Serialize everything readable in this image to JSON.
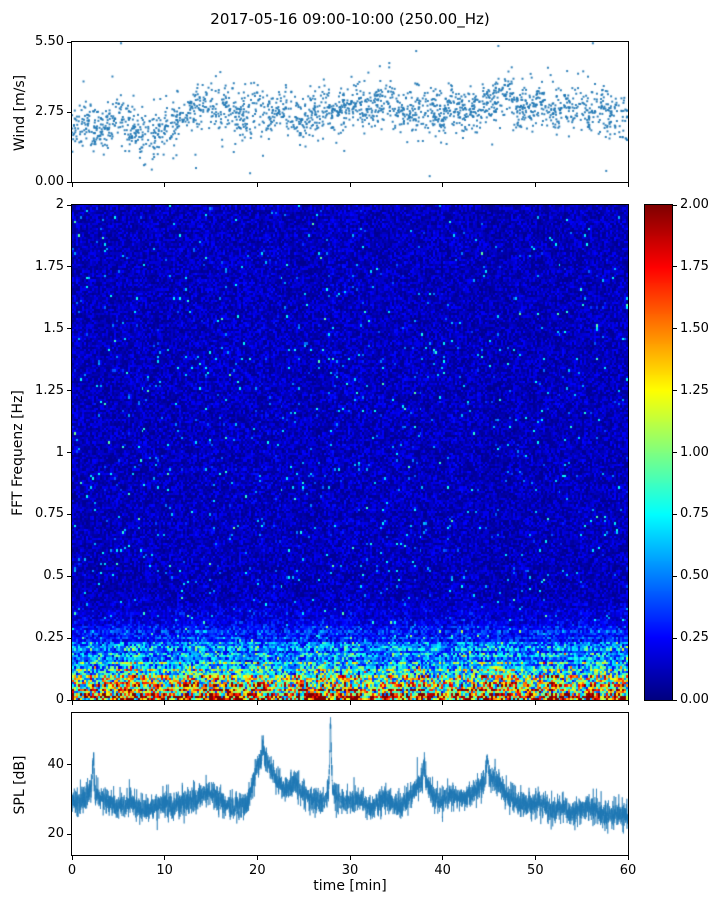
{
  "title": "2017-05-16 09:00-10:00 (250.00_Hz)",
  "colors": {
    "series_blue": "#1f77b4",
    "axis": "#000000",
    "background": "#ffffff"
  },
  "chart_data": [
    {
      "type": "scatter",
      "ylabel": "Wind [m/s]",
      "ylim": [
        0,
        5.5
      ],
      "ytick_labels": [
        "0.00",
        "2.75",
        "5.50"
      ],
      "ytick_values": [
        0,
        2.75,
        5.5
      ],
      "xlim": [
        0,
        60
      ],
      "marker_color": "#1f77b4",
      "n_points": 2000,
      "scatter_spread": 0.45,
      "trend_per_minute": [
        2.1,
        2.3,
        2.2,
        2.0,
        2.3,
        2.5,
        2.2,
        1.9,
        1.8,
        1.9,
        2.0,
        2.4,
        2.6,
        2.9,
        3.0,
        2.9,
        2.9,
        2.8,
        2.6,
        2.6,
        2.9,
        2.7,
        2.5,
        2.8,
        2.6,
        2.4,
        2.7,
        2.9,
        2.7,
        2.8,
        2.9,
        3.0,
        2.8,
        3.1,
        3.3,
        2.9,
        2.7,
        2.8,
        2.6,
        2.8,
        2.6,
        2.9,
        2.7,
        2.8,
        3.0,
        3.1,
        3.2,
        3.4,
        3.0,
        2.9,
        3.1,
        3.0,
        2.8,
        3.0,
        2.9,
        3.0,
        2.8,
        2.9,
        2.7,
        2.6,
        2.5
      ]
    },
    {
      "type": "heatmap",
      "ylabel": "FFT Frequenz [Hz]",
      "ylim": [
        0,
        2
      ],
      "ytick_labels": [
        "0",
        "0.25",
        "0.5",
        "0.75",
        "1",
        "1.25",
        "1.5",
        "1.75",
        "2"
      ],
      "ytick_values": [
        0,
        0.25,
        0.5,
        0.75,
        1,
        1.25,
        1.5,
        1.75,
        2
      ],
      "xlim": [
        0,
        60
      ],
      "colormap": "jet",
      "value_range": [
        0,
        2
      ],
      "heatmap_profile": {
        "base_level": 0.12,
        "speckle_probability": 0.013,
        "low_freq_cutoff_hz": 0.45,
        "low_freq_max": 2.0
      },
      "colorbar": {
        "tick_labels": [
          "0.00",
          "0.25",
          "0.50",
          "0.75",
          "1.00",
          "1.25",
          "1.50",
          "1.75",
          "2.00"
        ],
        "tick_values": [
          0,
          0.25,
          0.5,
          0.75,
          1,
          1.25,
          1.5,
          1.75,
          2
        ]
      }
    },
    {
      "type": "line",
      "ylabel": "SPL [dB]",
      "xlabel": "time [min]",
      "ylim": [
        14,
        55
      ],
      "ytick_labels": [
        "20",
        "40"
      ],
      "ytick_values": [
        20,
        40
      ],
      "xtick_labels": [
        "0",
        "10",
        "20",
        "30",
        "40",
        "50",
        "60"
      ],
      "xtick_values": [
        0,
        10,
        20,
        30,
        40,
        50,
        60
      ],
      "line_color": "#1f77b4",
      "noise_amplitude": 2.2,
      "values_per_minute": [
        30,
        29,
        33,
        31,
        29,
        28,
        29,
        28,
        27,
        28,
        29,
        28,
        29,
        30,
        31,
        32,
        30,
        28,
        28,
        29,
        40,
        42,
        36,
        33,
        35,
        32,
        30,
        29,
        33,
        30,
        29,
        30,
        28,
        29,
        30,
        28,
        29,
        33,
        36,
        31,
        29,
        32,
        30,
        31,
        34,
        37,
        35,
        31,
        29,
        28,
        29,
        28,
        27,
        28,
        26,
        27,
        28,
        26,
        25,
        26,
        25
      ],
      "peaks": [
        {
          "t": 2.3,
          "spl": 42
        },
        {
          "t": 20.6,
          "spl": 46
        },
        {
          "t": 27.9,
          "spl": 52
        },
        {
          "t": 38.0,
          "spl": 41
        },
        {
          "t": 44.8,
          "spl": 42
        }
      ]
    }
  ]
}
